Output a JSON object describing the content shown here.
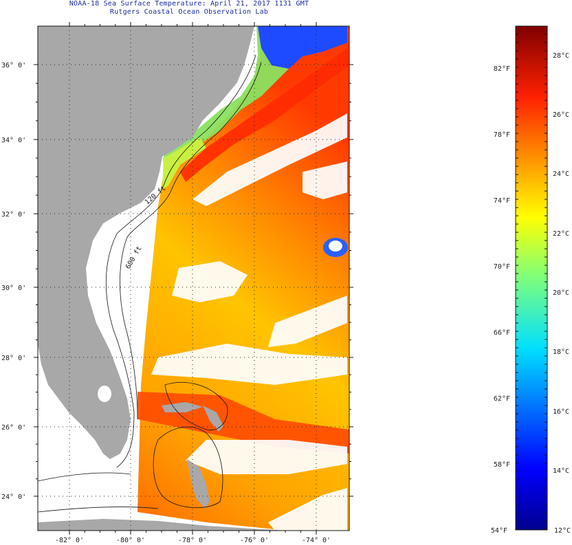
{
  "title": {
    "line1": "NOAA-18 Sea Surface Temperature:  April 21, 2017 1131 GMT",
    "line2": "Rutgers Coastal Ocean Observation Lab"
  },
  "map": {
    "lat_range_deg": [
      23.0,
      37.0
    ],
    "lon_range_deg": [
      -83.0,
      -73.0
    ],
    "lat_ticks": [
      "24° 0'",
      "26° 0'",
      "28° 0'",
      "30° 0'",
      "32° 0'",
      "34° 0'",
      "36° 0'"
    ],
    "lon_ticks": [
      "-82° 0'",
      "-80° 0'",
      "-78° 0'",
      "-76° 0'",
      "-74° 0'"
    ],
    "grid": "dotted",
    "land_color": "#a8a8a8",
    "cloud_color": "#ffffff"
  },
  "isobath_labels": [
    "120 ft",
    "600 ft"
  ],
  "colorbar": {
    "title": "",
    "range_f": [
      54,
      84
    ],
    "range_c": [
      12,
      29
    ],
    "fahrenheit_labels": [
      "82°F",
      "78°F",
      "74°F",
      "70°F",
      "66°F",
      "62°F",
      "58°F",
      "54°F"
    ],
    "celsius_labels": [
      "28°C",
      "26°C",
      "24°C",
      "22°C",
      "20°C",
      "18°C",
      "16°C",
      "14°C",
      "12°C"
    ],
    "colormap": "jet"
  }
}
